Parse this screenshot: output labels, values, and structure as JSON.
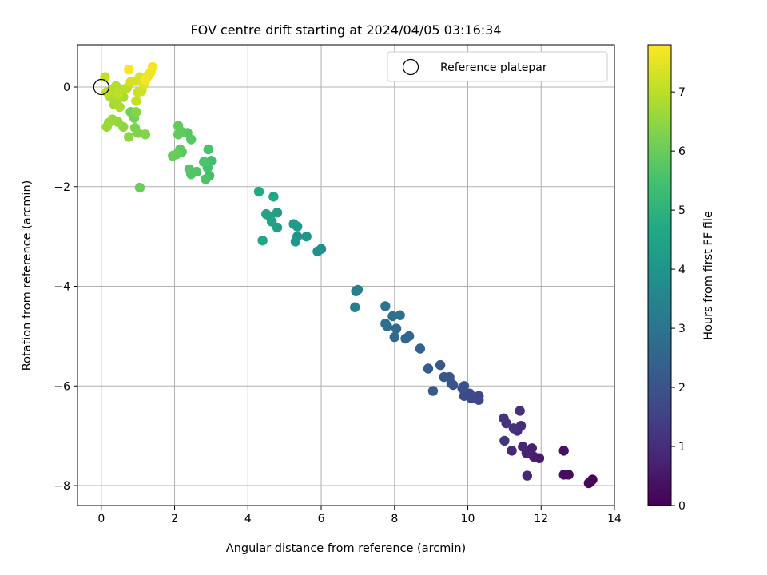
{
  "chart_data": {
    "type": "scatter",
    "title": "FOV centre drift starting at 2024/04/05 03:16:34",
    "xlabel": "Angular distance from reference (arcmin)",
    "ylabel": "Rotation from reference (arcmin)",
    "colorbar_label": "Hours from first FF file",
    "xlim": [
      -0.65,
      14.0
    ],
    "ylim": [
      -8.4,
      0.85
    ],
    "xticks": [
      0,
      2,
      4,
      6,
      8,
      10,
      12,
      14
    ],
    "yticks": [
      -8,
      -6,
      -4,
      -2,
      0
    ],
    "colorbar_range": [
      0,
      7.8
    ],
    "colorbar_ticks": [
      0,
      1,
      2,
      3,
      4,
      5,
      6,
      7
    ],
    "colormap": "viridis",
    "grid": true,
    "legend": {
      "label": "Reference platepar",
      "placement": "top-right"
    },
    "reference": {
      "x": 0,
      "y": 0
    },
    "series": [
      {
        "points": [
          [
            13.4,
            -7.88,
            0.05
          ],
          [
            13.35,
            -7.92,
            0.1
          ],
          [
            13.3,
            -7.95,
            0.15
          ],
          [
            12.75,
            -7.78,
            0.25
          ],
          [
            12.62,
            -7.78,
            0.3
          ],
          [
            12.62,
            -7.3,
            0.35
          ],
          [
            11.95,
            -7.45,
            0.55
          ],
          [
            11.8,
            -7.42,
            0.6
          ],
          [
            11.7,
            -7.35,
            0.65
          ],
          [
            11.75,
            -7.25,
            0.7
          ],
          [
            11.6,
            -7.35,
            0.75
          ],
          [
            11.5,
            -7.22,
            0.8
          ],
          [
            11.62,
            -7.8,
            0.85
          ],
          [
            11.2,
            -7.3,
            0.9
          ],
          [
            11.35,
            -6.9,
            0.95
          ],
          [
            11.45,
            -6.8,
            1.0
          ],
          [
            11.42,
            -6.5,
            1.05
          ],
          [
            11.25,
            -6.85,
            1.1
          ],
          [
            11.05,
            -6.75,
            1.15
          ],
          [
            10.98,
            -6.65,
            1.2
          ],
          [
            11.0,
            -7.1,
            1.25
          ],
          [
            10.3,
            -6.28,
            1.6
          ],
          [
            10.3,
            -6.2,
            1.65
          ],
          [
            10.1,
            -6.25,
            1.7
          ],
          [
            10.05,
            -6.15,
            1.75
          ],
          [
            9.9,
            -6.2,
            1.8
          ],
          [
            9.85,
            -6.05,
            1.85
          ],
          [
            9.9,
            -6.0,
            1.9
          ],
          [
            9.6,
            -5.98,
            1.95
          ],
          [
            9.55,
            -5.95,
            2.0
          ],
          [
            9.5,
            -5.82,
            2.05
          ],
          [
            9.35,
            -5.82,
            2.1
          ],
          [
            9.25,
            -5.58,
            2.15
          ],
          [
            9.05,
            -6.1,
            2.2
          ],
          [
            8.92,
            -5.65,
            2.25
          ],
          [
            8.7,
            -5.25,
            2.4
          ],
          [
            8.4,
            -5.0,
            2.55
          ],
          [
            8.3,
            -5.05,
            2.6
          ],
          [
            8.0,
            -5.02,
            2.65
          ],
          [
            8.05,
            -4.85,
            2.7
          ],
          [
            7.8,
            -4.8,
            2.75
          ],
          [
            7.75,
            -4.75,
            2.8
          ],
          [
            7.95,
            -4.6,
            2.85
          ],
          [
            8.15,
            -4.58,
            2.9
          ],
          [
            7.75,
            -4.4,
            2.95
          ],
          [
            6.92,
            -4.42,
            3.3
          ],
          [
            6.95,
            -4.1,
            3.35
          ],
          [
            7.0,
            -4.07,
            3.4
          ],
          [
            6.0,
            -3.25,
            3.85
          ],
          [
            5.9,
            -3.3,
            3.9
          ],
          [
            5.6,
            -3.0,
            4.0
          ],
          [
            5.35,
            -3.0,
            4.05
          ],
          [
            5.3,
            -3.1,
            4.1
          ],
          [
            5.35,
            -2.8,
            4.15
          ],
          [
            5.25,
            -2.75,
            4.2
          ],
          [
            4.8,
            -2.52,
            4.35
          ],
          [
            4.8,
            -2.82,
            4.4
          ],
          [
            4.65,
            -2.7,
            4.45
          ],
          [
            4.6,
            -2.6,
            4.5
          ],
          [
            4.5,
            -2.55,
            4.55
          ],
          [
            4.4,
            -3.08,
            4.6
          ],
          [
            4.7,
            -2.2,
            4.65
          ],
          [
            4.3,
            -2.1,
            4.7
          ],
          [
            3.0,
            -1.48,
            5.4
          ],
          [
            2.95,
            -1.78,
            5.45
          ],
          [
            2.9,
            -1.62,
            5.5
          ],
          [
            2.92,
            -1.25,
            5.55
          ],
          [
            2.85,
            -1.85,
            5.6
          ],
          [
            2.8,
            -1.5,
            5.62
          ],
          [
            2.6,
            -1.7,
            5.65
          ],
          [
            2.45,
            -1.75,
            5.7
          ],
          [
            2.4,
            -1.65,
            5.72
          ],
          [
            2.45,
            -1.05,
            5.75
          ],
          [
            2.35,
            -0.92,
            5.78
          ],
          [
            2.2,
            -1.3,
            5.82
          ],
          [
            2.15,
            -1.25,
            5.85
          ],
          [
            2.2,
            -0.9,
            5.88
          ],
          [
            2.1,
            -0.78,
            5.9
          ],
          [
            2.1,
            -0.95,
            5.92
          ],
          [
            2.05,
            -1.35,
            5.95
          ],
          [
            1.95,
            -1.38,
            5.98
          ],
          [
            1.05,
            -2.02,
            6.05
          ],
          [
            0.8,
            -0.5,
            6.15
          ],
          [
            0.9,
            -0.62,
            6.2
          ],
          [
            0.92,
            -0.82,
            6.25
          ],
          [
            1.0,
            -0.92,
            6.3
          ],
          [
            1.2,
            -0.95,
            6.35
          ],
          [
            0.95,
            -0.5,
            6.4
          ],
          [
            0.75,
            -1.0,
            6.45
          ],
          [
            0.6,
            -0.8,
            6.5
          ],
          [
            0.45,
            -0.7,
            6.55
          ],
          [
            0.3,
            -0.65,
            6.6
          ],
          [
            0.2,
            -0.72,
            6.62
          ],
          [
            0.15,
            -0.8,
            6.65
          ],
          [
            0.35,
            -0.35,
            6.7
          ],
          [
            0.4,
            -0.3,
            6.75
          ],
          [
            0.6,
            -0.2,
            6.8
          ],
          [
            0.5,
            -0.4,
            6.82
          ],
          [
            0.25,
            -0.2,
            6.85
          ],
          [
            0.3,
            -0.05,
            6.9
          ],
          [
            0.4,
            0.02,
            6.92
          ],
          [
            0.6,
            -0.05,
            6.95
          ],
          [
            0.7,
            -0.02,
            7.0
          ],
          [
            0.45,
            -0.15,
            7.02
          ],
          [
            0.15,
            -0.1,
            7.05
          ],
          [
            0.1,
            0.2,
            7.08
          ],
          [
            0.95,
            -0.28,
            7.1
          ],
          [
            1.0,
            -0.1,
            7.15
          ],
          [
            1.1,
            -0.08,
            7.2
          ],
          [
            0.8,
            0.1,
            7.25
          ],
          [
            0.95,
            0.12,
            7.3
          ],
          [
            1.05,
            0.2,
            7.35
          ],
          [
            1.15,
            0.05,
            7.4
          ],
          [
            1.2,
            0.12,
            7.45
          ],
          [
            1.25,
            0.2,
            7.5
          ],
          [
            1.3,
            0.25,
            7.55
          ],
          [
            1.35,
            0.3,
            7.6
          ],
          [
            1.4,
            0.4,
            7.65
          ],
          [
            1.2,
            0.15,
            7.7
          ],
          [
            0.75,
            0.35,
            7.75
          ]
        ]
      }
    ]
  }
}
